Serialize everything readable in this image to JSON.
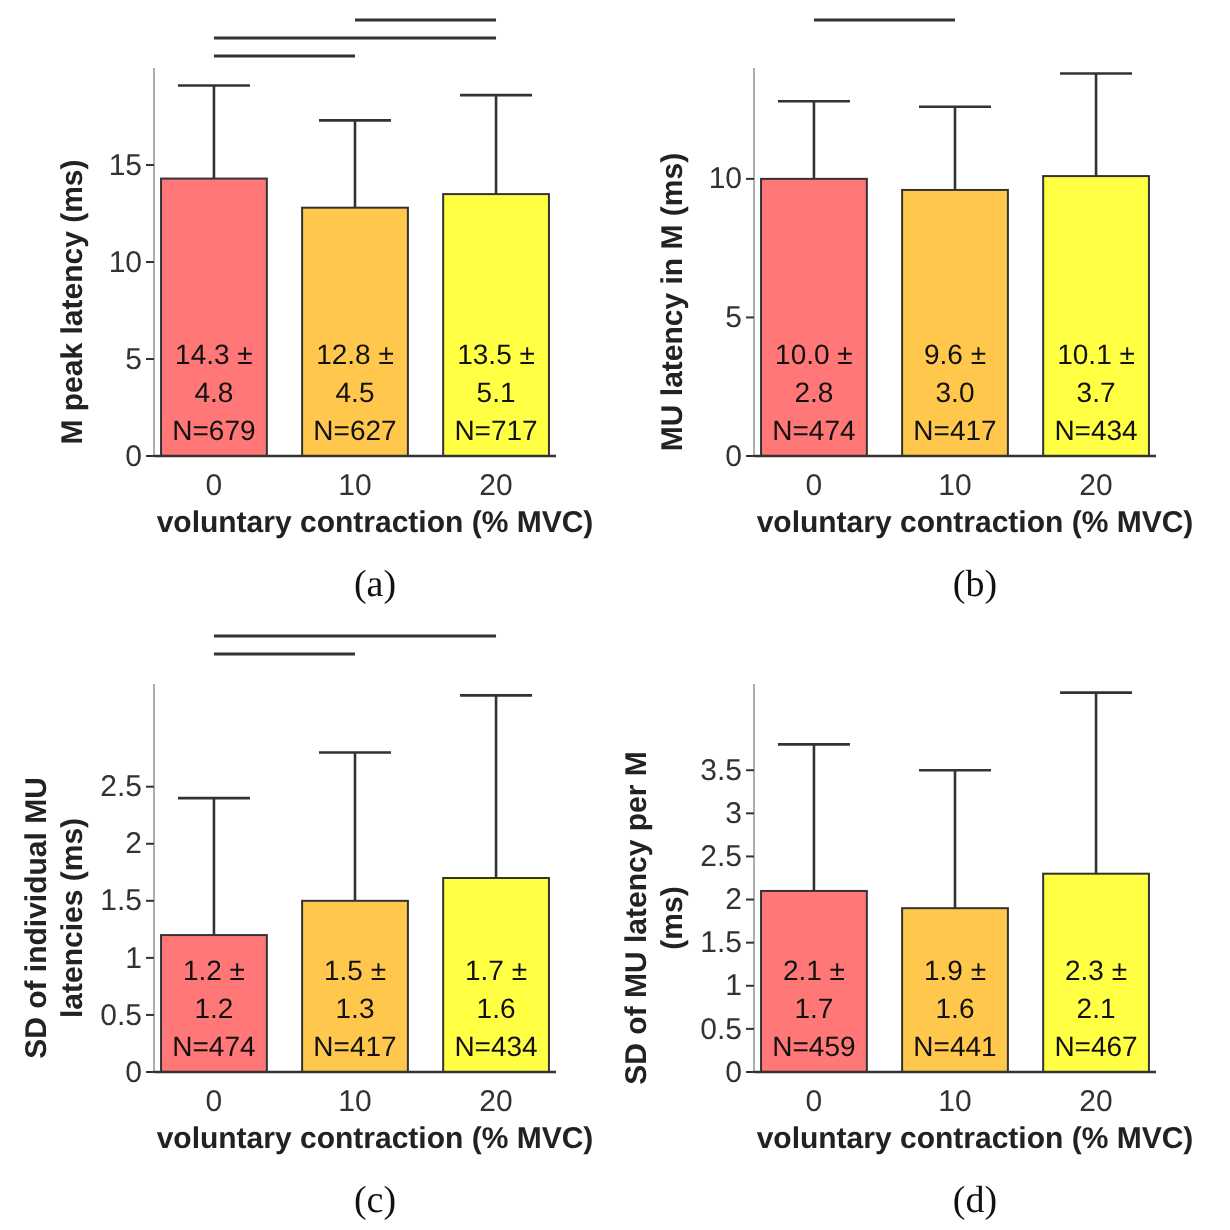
{
  "chart_data": [
    {
      "type": "bar",
      "title": "(a)",
      "xlabel": "voluntary contraction (% MVC)",
      "ylabel": "M peak latency (ms)",
      "categories": [
        "0",
        "10",
        "20"
      ],
      "values": [
        14.3,
        12.8,
        13.5
      ],
      "colors": [
        "#ff7777",
        "#ffc84c",
        "#ffff44"
      ],
      "errors": [
        [
          14.3,
          19.1
        ],
        [
          12.8,
          17.3
        ],
        [
          13.5,
          18.6
        ]
      ],
      "value_labels": [
        "14.3 ± 4.8 N=679",
        "12.8 ± 4.5 N=627",
        "13.5 ± 5.1 N=717"
      ],
      "ylim": [
        0,
        20
      ],
      "yticks": [
        0,
        5,
        10,
        15
      ]
    },
    {
      "type": "bar",
      "title": "(b)",
      "xlabel": "voluntary contraction (% MVC)",
      "ylabel": "MU latency in M (ms)",
      "categories": [
        "0",
        "10",
        "20"
      ],
      "values": [
        10.0,
        9.6,
        10.1
      ],
      "colors": [
        "#ff7777",
        "#ffc84c",
        "#ffff44"
      ],
      "errors": [
        [
          10.0,
          12.8
        ],
        [
          9.6,
          12.6
        ],
        [
          10.1,
          13.8
        ]
      ],
      "value_labels": [
        "10.0 ± 2.8 N=474",
        "9.6 ± 3.0 N=417",
        "10.1 ± 3.7 N=434"
      ],
      "ylim": [
        0,
        14
      ],
      "yticks": [
        0,
        5,
        10
      ]
    },
    {
      "type": "bar",
      "title": "(c)",
      "xlabel": "voluntary contraction (% MVC)",
      "ylabel": "SD of individual MU latencies (ms)",
      "categories": [
        "0",
        "10",
        "20"
      ],
      "values": [
        1.2,
        1.5,
        1.7
      ],
      "colors": [
        "#ff7777",
        "#ffc84c",
        "#ffff44"
      ],
      "errors": [
        [
          1.2,
          2.4
        ],
        [
          1.5,
          2.8
        ],
        [
          1.7,
          3.3
        ]
      ],
      "value_labels": [
        "1.2 ± 1.2 N=474",
        "1.5 ± 1.3 N=417",
        "1.7 ± 1.6 N=434"
      ],
      "ylim": [
        0,
        3.4
      ],
      "yticks": [
        0,
        0.5,
        1,
        1.5,
        2,
        2.5
      ]
    },
    {
      "type": "bar",
      "title": "(d)",
      "xlabel": "voluntary contraction (% MVC)",
      "ylabel": "SD of MU latency per M (ms)",
      "categories": [
        "0",
        "10",
        "20"
      ],
      "values": [
        2.1,
        1.9,
        2.3
      ],
      "colors": [
        "#ff7777",
        "#ffc84c",
        "#ffff44"
      ],
      "errors": [
        [
          2.1,
          3.8
        ],
        [
          1.9,
          3.5
        ],
        [
          2.3,
          4.4
        ]
      ],
      "value_labels": [
        "2.1 ± 1.7 N=459",
        "1.9 ± 1.6 N=441",
        "2.3 ± 2.1 N=467"
      ],
      "ylim": [
        0,
        4.5
      ],
      "yticks": [
        0,
        0.5,
        1,
        1.5,
        2,
        2.5,
        3,
        3.5
      ]
    }
  ]
}
